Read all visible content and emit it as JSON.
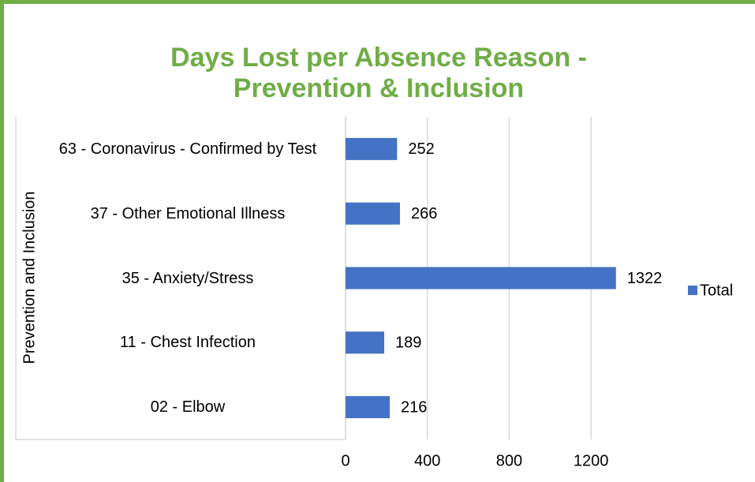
{
  "chart_data": {
    "type": "bar",
    "orientation": "horizontal",
    "title": [
      "Days Lost per Absence Reason -",
      "Prevention & Inclusion"
    ],
    "y_axis_label": "Prevention and Inclusion",
    "categories": [
      "63 - Coronavirus - Confirmed by Test",
      "37 - Other Emotional Illness",
      "35 - Anxiety/Stress",
      "11 - Chest Infection",
      "02 - Elbow"
    ],
    "series": [
      {
        "name": "Total",
        "color": "#4472c4",
        "values": [
          252,
          266,
          1322,
          189,
          216
        ]
      }
    ],
    "xlim": [
      0,
      1400
    ],
    "xticks": [
      0,
      400,
      800,
      1200
    ],
    "grid": true,
    "legend": "right"
  }
}
